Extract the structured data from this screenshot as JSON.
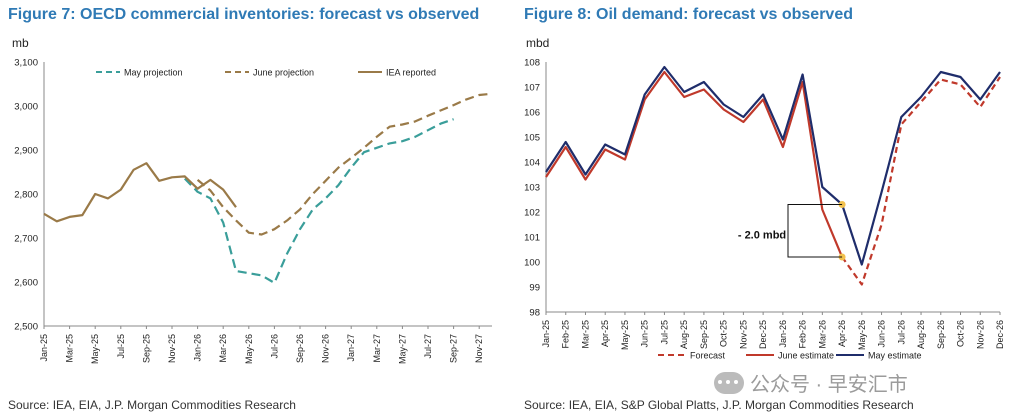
{
  "figure7": {
    "title": "Figure 7: OECD commercial inventories: forecast vs observed",
    "unit": "mb",
    "source": "Source: IEA, EIA, J.P. Morgan Commodities Research"
  },
  "figure8": {
    "title": "Figure 8: Oil demand: forecast vs observed",
    "unit": "mbd",
    "source": "Source: IEA, EIA, S&P Global Platts, J.P. Morgan Commodities Research",
    "annotation": "- 2.0 mbd"
  },
  "watermark": {
    "text": "公众号 · 早安汇市"
  },
  "chart_data": [
    {
      "type": "line",
      "title": "Figure 7: OECD commercial inventories: forecast vs observed",
      "ylabel": "mb",
      "ylim": [
        2500,
        3100
      ],
      "yticks": [
        2500,
        2600,
        2700,
        2800,
        2900,
        3000,
        3100
      ],
      "ytick_labels": [
        "2,500",
        "2,600",
        "2,700",
        "2,800",
        "2,900",
        "3,000",
        "3,100"
      ],
      "x": [
        "Jan-25",
        "Feb-25",
        "Mar-25",
        "Apr-25",
        "May-25",
        "Jun-25",
        "Jul-25",
        "Aug-25",
        "Sep-25",
        "Oct-25",
        "Nov-25",
        "Dec-25",
        "Jan-26",
        "Feb-26",
        "Mar-26",
        "Apr-26",
        "May-26",
        "Jun-26",
        "Jul-26",
        "Aug-26",
        "Sep-26",
        "Oct-26",
        "Nov-26",
        "Dec-26",
        "Jan-27",
        "Feb-27",
        "Mar-27",
        "Apr-27",
        "May-27",
        "Jun-27",
        "Jul-27",
        "Aug-27",
        "Sep-27",
        "Oct-27",
        "Nov-27",
        "Dec-27"
      ],
      "xtick_labels": [
        "Jan-25",
        "Mar-25",
        "May-25",
        "Jul-25",
        "Sep-25",
        "Nov-25",
        "Jan-26",
        "Mar-26",
        "May-26",
        "Jul-26",
        "Sep-26",
        "Nov-26",
        "Jan-27",
        "Mar-27",
        "May-27",
        "Jul-27",
        "Sep-27",
        "Nov-27"
      ],
      "legend": "top",
      "grid": false,
      "series": [
        {
          "name": "May projection",
          "color": "#3a9e9a",
          "style": "dashed",
          "values": [
            null,
            null,
            null,
            null,
            null,
            null,
            null,
            null,
            null,
            null,
            null,
            2835,
            2805,
            2790,
            2735,
            2625,
            2620,
            2615,
            2598,
            2665,
            2720,
            2765,
            2790,
            2820,
            2860,
            2895,
            2905,
            2915,
            2920,
            2930,
            2945,
            2960,
            2970,
            null,
            null,
            null
          ]
        },
        {
          "name": "June projection",
          "color": "#9a7a48",
          "style": "dashed",
          "values": [
            null,
            null,
            null,
            null,
            null,
            null,
            null,
            null,
            null,
            null,
            null,
            null,
            2832,
            2808,
            2770,
            2740,
            2712,
            2708,
            2720,
            2740,
            2765,
            2800,
            2830,
            2860,
            2882,
            2905,
            2930,
            2953,
            2958,
            2965,
            2978,
            2990,
            3002,
            3015,
            3025,
            3028
          ]
        },
        {
          "name": "IEA reported",
          "color": "#9a7a48",
          "style": "solid",
          "values": [
            2755,
            2738,
            2748,
            2752,
            2800,
            2790,
            2810,
            2855,
            2870,
            2830,
            2838,
            2840,
            2812,
            2832,
            2810,
            2770,
            null,
            null,
            null,
            null,
            null,
            null,
            null,
            null,
            null,
            null,
            null,
            null,
            null,
            null,
            null,
            null,
            null,
            null,
            null,
            null
          ]
        }
      ]
    },
    {
      "type": "line",
      "title": "Figure 8: Oil demand: forecast vs observed",
      "ylabel": "mbd",
      "ylim": [
        98,
        108
      ],
      "yticks": [
        98,
        99,
        100,
        101,
        102,
        103,
        104,
        105,
        106,
        107,
        108
      ],
      "ytick_labels": [
        "98",
        "99",
        "100",
        "101",
        "102",
        "103",
        "104",
        "105",
        "106",
        "107",
        "108"
      ],
      "x": [
        "Jan-25",
        "Feb-25",
        "Mar-25",
        "Apr-25",
        "May-25",
        "Jun-25",
        "Jul-25",
        "Aug-25",
        "Sep-25",
        "Oct-25",
        "Nov-25",
        "Dec-25",
        "Jan-26",
        "Feb-26",
        "Mar-26",
        "Apr-26",
        "May-26",
        "Jun-26",
        "Jul-26",
        "Aug-26",
        "Sep-26",
        "Oct-26",
        "Nov-26",
        "Dec-26"
      ],
      "xtick_labels": [
        "Jan-25",
        "Feb-25",
        "Mar-25",
        "Apr-25",
        "May-25",
        "Jun-25",
        "Jul-25",
        "Aug-25",
        "Sep-25",
        "Oct-25",
        "Nov-25",
        "Dec-25",
        "Jan-26",
        "Feb-26",
        "Mar-26",
        "Apr-26",
        "May-26",
        "Jun-26",
        "Jul-26",
        "Aug-26",
        "Sep-26",
        "Oct-26",
        "Nov-26",
        "Dec-26"
      ],
      "legend": "bottom",
      "grid": false,
      "series": [
        {
          "name": "Forecast",
          "color": "#c0392b",
          "style": "dashed",
          "values": [
            null,
            null,
            null,
            null,
            null,
            null,
            null,
            null,
            null,
            null,
            null,
            null,
            null,
            null,
            null,
            100.2,
            99.1,
            101.5,
            105.5,
            106.4,
            107.3,
            107.1,
            106.2,
            107.4
          ]
        },
        {
          "name": "June estimate",
          "color": "#c0392b",
          "style": "solid",
          "values": [
            103.4,
            104.6,
            103.3,
            104.5,
            104.1,
            106.5,
            107.6,
            106.6,
            106.9,
            106.1,
            105.6,
            106.5,
            104.6,
            107.2,
            102.1,
            100.2,
            null,
            null,
            null,
            null,
            null,
            null,
            null,
            null
          ]
        },
        {
          "name": "May estimate",
          "color": "#1f2d6b",
          "style": "solid",
          "values": [
            103.6,
            104.8,
            103.5,
            104.7,
            104.3,
            106.7,
            107.8,
            106.8,
            107.2,
            106.3,
            105.8,
            106.7,
            104.9,
            107.5,
            103.0,
            102.3,
            99.9,
            102.8,
            105.8,
            106.6,
            107.6,
            107.4,
            106.5,
            107.6
          ]
        }
      ],
      "markers": [
        {
          "x": "Apr-26",
          "y": 102.3,
          "color": "#f2c14e"
        },
        {
          "x": "Apr-26",
          "y": 100.2,
          "color": "#f2c14e"
        }
      ]
    }
  ]
}
